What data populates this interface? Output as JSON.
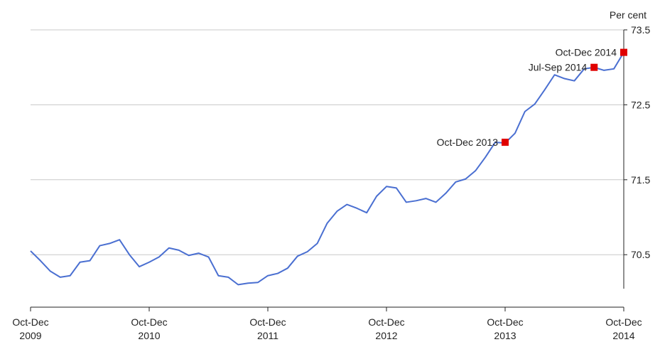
{
  "chart_data": {
    "type": "line",
    "y_unit_label": "Per cent",
    "ylim": [
      69.8,
      73.5
    ],
    "y_ticks": [
      70.5,
      71.5,
      72.5,
      73.5
    ],
    "y_tick_labels": [
      "70.5",
      "71.5",
      "72.5",
      "73.5"
    ],
    "grid": true,
    "x_ticks": [
      {
        "label": "Oct-Dec\n2009",
        "line1": "Oct-Dec",
        "line2": "2009"
      },
      {
        "label": "Oct-Dec\n2010",
        "line1": "Oct-Dec",
        "line2": "2010"
      },
      {
        "label": "Oct-Dec\n2011",
        "line1": "Oct-Dec",
        "line2": "2011"
      },
      {
        "label": "Oct-Dec\n2012",
        "line1": "Oct-Dec",
        "line2": "2012"
      },
      {
        "label": "Oct-Dec\n2013",
        "line1": "Oct-Dec",
        "line2": "2013"
      },
      {
        "label": "Oct-Dec\n2014",
        "line1": "Oct-Dec",
        "line2": "2014"
      }
    ],
    "series": [
      {
        "color": "#4a6fd1",
        "x": [
          "Oct-Dec 2009",
          "Nov-Jan",
          "Dec-Feb",
          "Jan-Mar 2010",
          "Feb-Apr",
          "Mar-May",
          "Apr-Jun",
          "May-Jul",
          "Jun-Aug",
          "Jul-Sep",
          "Aug-Oct",
          "Sep-Nov",
          "Oct-Dec 2010",
          "Nov-Jan",
          "Dec-Feb",
          "Jan-Mar 2011",
          "Feb-Apr",
          "Mar-May",
          "Apr-Jun",
          "May-Jul",
          "Jun-Aug",
          "Jul-Sep",
          "Aug-Oct",
          "Sep-Nov",
          "Oct-Dec 2011",
          "Nov-Jan",
          "Dec-Feb",
          "Jan-Mar 2012",
          "Feb-Apr",
          "Mar-May",
          "Apr-Jun",
          "May-Jul",
          "Jun-Aug",
          "Jul-Sep",
          "Aug-Oct",
          "Sep-Nov",
          "Oct-Dec 2012",
          "Nov-Jan",
          "Dec-Feb",
          "Jan-Mar 2013",
          "Feb-Apr",
          "Mar-May",
          "Apr-Jun",
          "May-Jul",
          "Jun-Aug",
          "Jul-Sep",
          "Aug-Oct",
          "Sep-Nov",
          "Oct-Dec 2013",
          "Nov-Jan",
          "Dec-Feb",
          "Jan-Mar 2014",
          "Feb-Apr",
          "Mar-May",
          "Apr-Jun",
          "May-Jul",
          "Jun-Aug",
          "Jul-Sep",
          "Aug-Oct",
          "Sep-Nov",
          "Oct-Dec 2014"
        ],
        "values": [
          70.55,
          70.42,
          70.28,
          70.2,
          70.22,
          70.4,
          70.42,
          70.62,
          70.65,
          70.7,
          70.5,
          70.34,
          70.4,
          70.47,
          70.59,
          70.56,
          70.49,
          70.52,
          70.47,
          70.22,
          70.2,
          70.1,
          70.12,
          70.13,
          70.22,
          70.25,
          70.32,
          70.48,
          70.54,
          70.65,
          70.92,
          71.08,
          71.17,
          71.12,
          71.06,
          71.28,
          71.41,
          71.39,
          71.2,
          71.22,
          71.25,
          71.2,
          71.32,
          71.47,
          71.51,
          71.62,
          71.8,
          72.0,
          71.99,
          72.12,
          72.41,
          72.51,
          72.7,
          72.9,
          72.85,
          72.82,
          72.98,
          73.0,
          72.96,
          72.98,
          73.2
        ]
      }
    ],
    "highlighted_points": [
      {
        "label": "Oct-Dec 2013",
        "x_index": 48,
        "value": 72.0,
        "color": "#e00000"
      },
      {
        "label": "Jul-Sep 2014",
        "x_index": 57,
        "value": 73.0,
        "color": "#e00000"
      },
      {
        "label": "Oct-Dec 2014",
        "x_index": 60,
        "value": 73.2,
        "color": "#e00000"
      }
    ],
    "colors": {
      "line": "#4a6fd1",
      "grid": "#c8c8c8",
      "axis": "#222222",
      "marker": "#e00000"
    }
  }
}
